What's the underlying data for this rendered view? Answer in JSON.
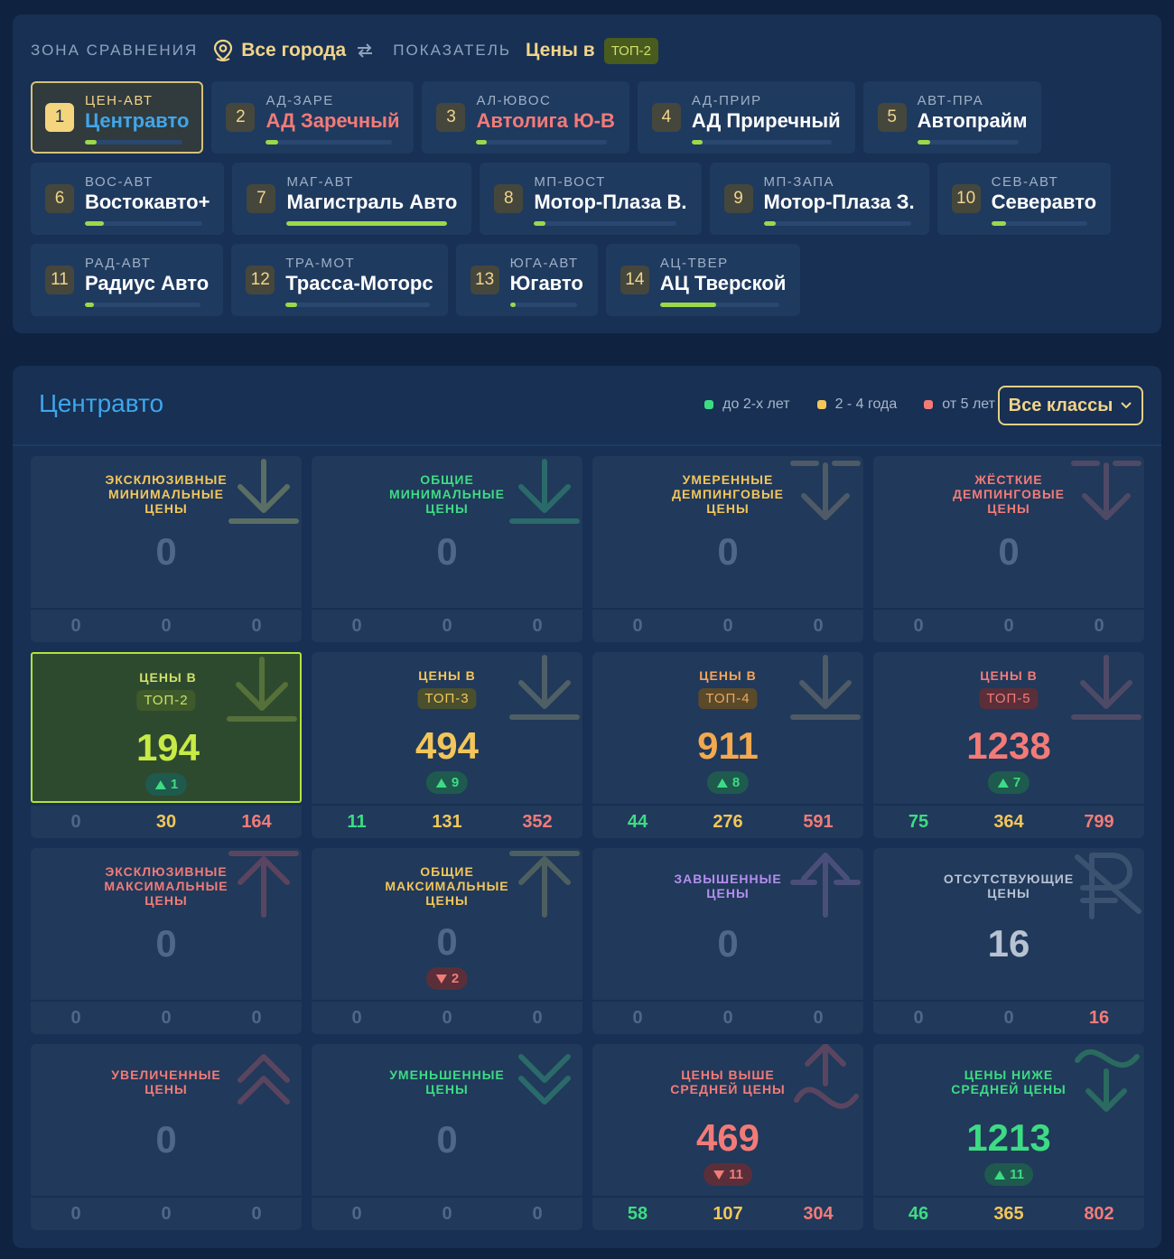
{
  "filters": {
    "zone_label": "ЗОНА СРАВНЕНИЯ",
    "zone_value": "Все города",
    "indicator_label": "ПОКАЗАТЕЛЬ",
    "indicator_value": "Цены в",
    "indicator_badge": "ТОП-2"
  },
  "dealers": [
    {
      "num": "1",
      "code": "ЦЕН-АВТ",
      "name": "Центравто",
      "progress": 0.12,
      "selected": true
    },
    {
      "num": "2",
      "code": "АД-ЗАРЕ",
      "name": "АД Заречный",
      "progress": 0.1
    },
    {
      "num": "3",
      "code": "АЛ-ЮВОС",
      "name": "Автолига Ю-В",
      "progress": 0.02
    },
    {
      "num": "4",
      "code": "АД-ПРИР",
      "name": "АД Приречный",
      "progress": 0.05
    },
    {
      "num": "5",
      "code": "АВТ-ПРА",
      "name": "Автопрайм",
      "progress": 0.13
    },
    {
      "num": "6",
      "code": "ВОС-АВТ",
      "name": "Востокавто+",
      "progress": 0.16
    },
    {
      "num": "7",
      "code": "МАГ-АВТ",
      "name": "Магистраль Авто",
      "progress": 1.0
    },
    {
      "num": "8",
      "code": "МП-ВОСТ",
      "name": "Мотор-Плаза В.",
      "progress": 0.03
    },
    {
      "num": "9",
      "code": "МП-ЗАПА",
      "name": "Мотор-Плаза З.",
      "progress": 0.01
    },
    {
      "num": "10",
      "code": "СЕВ-АВТ",
      "name": "Северавто",
      "progress": 0.15
    },
    {
      "num": "11",
      "code": "РАД-АВТ",
      "name": "Радиус Авто",
      "progress": 0.06
    },
    {
      "num": "12",
      "code": "ТРА-МОТ",
      "name": "Трасса-Моторс",
      "progress": 0.02
    },
    {
      "num": "13",
      "code": "ЮГА-АВТ",
      "name": "Югавто",
      "progress": 0.02
    },
    {
      "num": "14",
      "code": "АЦ-ТВЕР",
      "name": "АЦ Тверской",
      "progress": 0.47
    }
  ],
  "main": {
    "title": "Центравто",
    "legend": [
      {
        "label": "до 2-х лет",
        "color": "#3ddc84"
      },
      {
        "label": "2 - 4 года",
        "color": "#f3c65a"
      },
      {
        "label": "от 5 лет",
        "color": "#f27b78"
      }
    ],
    "classes_button": "Все классы"
  },
  "cards": [
    {
      "title": [
        "ЭКСКЛЮЗИВНЫЕ",
        "МИНИМАЛЬНЫЕ",
        "ЦЕНЫ"
      ],
      "title_color": "#f3c65a",
      "icon": "arrow-down-bar-icon",
      "icon_color": "#5a6e64",
      "value": "0",
      "value_color": "#4f6788",
      "foot": [
        "0",
        "0",
        "0"
      ]
    },
    {
      "title": [
        "ОБЩИЕ",
        "МИНИМАЛЬНЫЕ",
        "ЦЕНЫ"
      ],
      "title_color": "#3ddc84",
      "icon": "arrow-down-bar-icon",
      "icon_color": "#2a6a6a",
      "value": "0",
      "value_color": "#4f6788",
      "foot": [
        "0",
        "0",
        "0"
      ]
    },
    {
      "title": [
        "УМЕРЕННЫЕ",
        "ДЕМПИНГОВЫЕ",
        "ЦЕНЫ"
      ],
      "title_color": "#f3c65a",
      "icon": "arrow-down-double-bar-icon",
      "icon_color": "#4e5a66",
      "value": "0",
      "value_color": "#4f6788",
      "foot": [
        "0",
        "0",
        "0"
      ]
    },
    {
      "title": [
        "ЖЁСТКИЕ",
        "ДЕМПИНГОВЫЕ",
        "ЦЕНЫ"
      ],
      "title_color": "#f27b78",
      "icon": "arrow-down-double-bar-icon",
      "icon_color": "#4e4a66",
      "value": "0",
      "value_color": "#4f6788",
      "foot": [
        "0",
        "0",
        "0"
      ]
    },
    {
      "title": [
        "ЦЕНЫ В"
      ],
      "pill": "ТОП-2",
      "pill_bg": "#3f5a2a",
      "pill_fg": "#c9e36a",
      "title_color": "#cfe06a",
      "icon": "arrow-down-bar-icon",
      "icon_color": "#56703a",
      "value": "194",
      "value_color": "#c7ea46",
      "delta": "1",
      "delta_dir": "up",
      "foot": [
        "0",
        "30",
        "164"
      ],
      "highlight": true
    },
    {
      "title": [
        "ЦЕНЫ В"
      ],
      "pill": "ТОП-3",
      "pill_bg": "#4a4f2e",
      "pill_fg": "#f3c65a",
      "title_color": "#f3c65a",
      "icon": "arrow-down-bar-icon",
      "icon_color": "#4e5f66",
      "value": "494",
      "value_color": "#f3c65a",
      "delta": "9",
      "delta_dir": "up",
      "foot": [
        "11",
        "131",
        "352"
      ]
    },
    {
      "title": [
        "ЦЕНЫ В"
      ],
      "pill": "ТОП-4",
      "pill_bg": "#5a4a2a",
      "pill_fg": "#f3a65a",
      "title_color": "#f3a65a",
      "icon": "arrow-down-bar-icon",
      "icon_color": "#4e5a66",
      "value": "911",
      "value_color": "#f3a94f",
      "delta": "8",
      "delta_dir": "up",
      "foot": [
        "44",
        "276",
        "591"
      ]
    },
    {
      "title": [
        "ЦЕНЫ В"
      ],
      "pill": "ТОП-5",
      "pill_bg": "#5a2f3a",
      "pill_fg": "#f27b78",
      "title_color": "#f27b78",
      "icon": "arrow-down-bar-icon",
      "icon_color": "#4e4a66",
      "value": "1238",
      "value_color": "#f27b78",
      "delta": "7",
      "delta_dir": "up",
      "foot": [
        "75",
        "364",
        "799"
      ]
    },
    {
      "title": [
        "ЭКСКЛЮЗИВНЫЕ",
        "МАКСИМАЛЬНЫЕ",
        "ЦЕНЫ"
      ],
      "title_color": "#f27b78",
      "icon": "arrow-up-bar-icon",
      "icon_color": "#5a4560",
      "value": "0",
      "value_color": "#4f6788",
      "foot": [
        "0",
        "0",
        "0"
      ]
    },
    {
      "title": [
        "ОБЩИЕ",
        "МАКСИМАЛЬНЫЕ",
        "ЦЕНЫ"
      ],
      "title_color": "#f3c65a",
      "icon": "arrow-up-bar-icon",
      "icon_color": "#4e5f60",
      "value": "0",
      "value_color": "#4f6788",
      "delta": "2",
      "delta_dir": "down",
      "foot": [
        "0",
        "0",
        "0"
      ]
    },
    {
      "title": [
        "ЗАВЫШЕННЫЕ",
        "ЦЕНЫ"
      ],
      "title_color": "#b48ef0",
      "icon": "arrow-up-double-bar-icon",
      "icon_color": "#4a4f7a",
      "value": "0",
      "value_color": "#4f6788",
      "foot": [
        "0",
        "0",
        "0"
      ]
    },
    {
      "title": [
        "ОТСУТСТВУЮЩИЕ",
        "ЦЕНЫ"
      ],
      "title_color": "#b7c2d3",
      "icon": "ruble-crossed-icon",
      "icon_color": "#3b5270",
      "value": "16",
      "value_color": "#b7c2d3",
      "foot": [
        "0",
        "0",
        "16"
      ]
    },
    {
      "title": [
        "УВЕЛИЧЕННЫЕ",
        "ЦЕНЫ"
      ],
      "title_color": "#f27b78",
      "icon": "chevrons-up-icon",
      "icon_color": "#5a4560",
      "value": "0",
      "value_color": "#4f6788",
      "foot": [
        "0",
        "0",
        "0"
      ]
    },
    {
      "title": [
        "УМЕНЬШЕННЫЕ",
        "ЦЕНЫ"
      ],
      "title_color": "#3ddc84",
      "icon": "chevrons-down-icon",
      "icon_color": "#2a6a6a",
      "value": "0",
      "value_color": "#4f6788",
      "foot": [
        "0",
        "0",
        "0"
      ]
    },
    {
      "title": [
        "ЦЕНЫ ВЫШЕ",
        "СРЕДНЕЙ ЦЕНЫ"
      ],
      "title_color": "#f27b78",
      "icon": "arrow-up-wave-icon",
      "icon_color": "#5a4560",
      "value": "469",
      "value_color": "#f27b78",
      "delta": "11",
      "delta_dir": "down",
      "foot": [
        "58",
        "107",
        "304"
      ]
    },
    {
      "title": [
        "ЦЕНЫ НИЖЕ",
        "СРЕДНЕЙ ЦЕНЫ"
      ],
      "title_color": "#3ddc84",
      "icon": "arrow-down-wave-icon",
      "icon_color": "#2a6a60",
      "value": "1213",
      "value_color": "#3ddc84",
      "delta": "11",
      "delta_dir": "up",
      "foot": [
        "46",
        "365",
        "802"
      ]
    }
  ]
}
